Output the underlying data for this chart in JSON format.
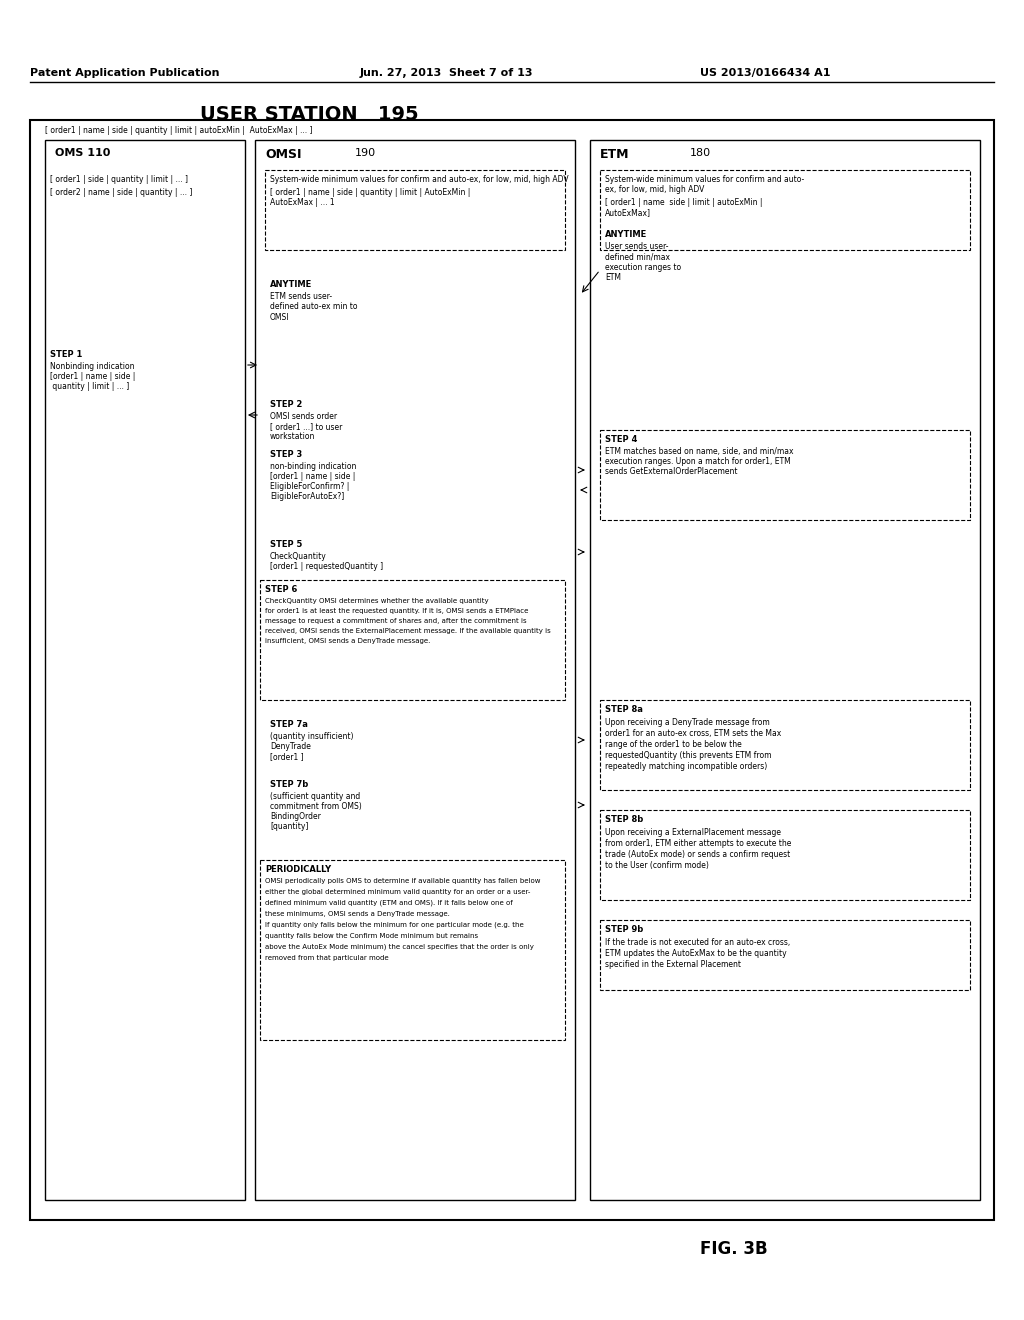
{
  "title": "USER STATION   195",
  "fig_label": "FIG. 3B",
  "patent_header_left": "Patent Application Publication",
  "patent_header_mid": "Jun. 27, 2013  Sheet 7 of 13",
  "patent_header_right": "US 2013/0166434 A1",
  "background_color": "#ffffff",
  "text_color": "#000000",
  "oms_label": "OMS 110",
  "omsi_label": "OMSI",
  "omsi_number": "190",
  "etm_label": "ETM",
  "etm_number": "180",
  "user_station_fields": "[ order1 | name | side | quantity | limit | autoExMin |  AutoExMax | ... ]",
  "oms_fields1": "[ order1 | side | quantity | limit | ... ]",
  "oms_fields2": "[ order2 | name | side | quantity | ... ]",
  "anytime_user": "ANYTIME\nUser sends user-\ndefined min/max\nexecution ranges to\nETM",
  "anytime_etm": "ANYTIME\nETM sends user-\ndefined auto-ex min to\nOMSI",
  "step1_title": "STEP 1",
  "step1_text": "Nonbinding indication\n[order1 | name | side |\n quantity | limit | ... ]",
  "step2_title": "STEP 2",
  "step2_text": "OMSI sends order\n[ order1 ...] to user\nworkstation",
  "step3_title": "STEP 3",
  "step3_text": "non-binding indication\n[order1 | name | side |\nEligibleForConfirm? |\nEligibleForAutoEx?]",
  "step4_title": "STEP 4",
  "step4_text": "ETM matches based on name, side, and min/max\nexecution ranges. Upon a match for order1, ETM\nsends GetExternalOrderPlacement",
  "step5_title": "STEP 5",
  "step5_text": "CheckQuantity\n[order1 | requestedQuantity ]",
  "step6_title": "STEP 6",
  "step6_text": "CheckQuantity OMSI determines whether the available quantity\nfor order1 is at least the requested quantity. If it is, OMSI sends a ETMPlace\nmessage to request a commitment of shares and, after the commitment is\nreceived, OMSI sends the ExternalPlacement message. If the available quantity is\ninsufficient, OMSI sends a DenyTrade message.",
  "step7a_title": "STEP 7a",
  "step7a_text": "(quantity insufficient)\nDenyTrade\n[order1 ]",
  "step7b_title": "STEP 7b",
  "step7b_text": "(sufficient quantity and\ncommitment from OMS)\nBindingOrder\n[quantity]",
  "step8a_title": "STEP 8a",
  "step8a_text": "Upon receiving a DenyTrade message from\norder1 for an auto-ex cross, ETM sets the Max\nrange of the order1 to be below the\nrequestedQuantity (this prevents ETM from\nrepeatedly matching incompatible orders)",
  "step8b_title": "STEP 8b",
  "step8b_text": "Upon receiving a ExternalPlacement message\nfrom order1, ETM either attempts to execute the\ntrade (AutoEx mode) or sends a confirm request\nto the User (confirm mode)",
  "step9b_title": "STEP 9b",
  "step9b_text": "If the trade is not executed for an auto-ex cross,\nETM updates the AutoExMax to be the quantity\nspecified in the External Placement",
  "omsi_system_text": "System-wide minimum values for confirm and auto-ex, for low, mid, high ADV\n\n[ order1 | name | side | quantity | limit | AutoExMin |\nAutoExMax | ... 1",
  "etm_system_text": "System-wide minimum values for confirm and auto-\nex, for low, mid, high ADV\n\n[ order1 | name | side | limit | autoExMin |\nAutoExMax]",
  "periodically_title": "PERIODICALLY",
  "periodically_text": "OMSI periodically polls OMS to determine if available quantity has fallen below\neither the global determined minimum valid quantity for an order or a user-\ndefined minimum valid quantity (ETM and OMS). If it falls below one of\nthese minimums, OMSI sends a DenyTrade message.\nIf quantity only falls below the minimum for one particular mode (e.g. the\nquantity falls below the Confirm Mode minimum but remains\nabove the AutoEx Mode minimum) the cancel specifies that the order is only\nremoved from that particular mode"
}
